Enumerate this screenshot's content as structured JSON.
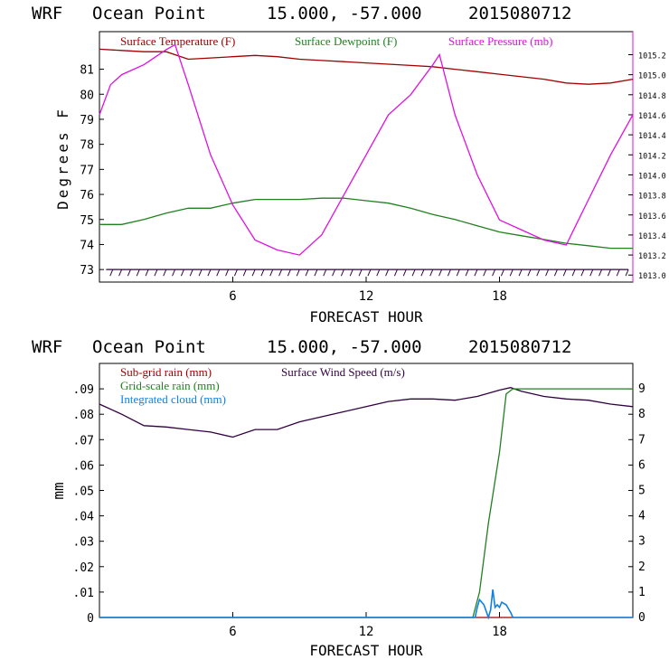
{
  "charts": {
    "top": {
      "title": {
        "model": "WRF",
        "location": "Ocean Point",
        "coords": "15.000, -57.000",
        "init": "2015080712"
      },
      "xlabel": "FORECAST HOUR",
      "ylabel_left": "Degrees F",
      "x_ticks": [
        "6",
        "12",
        "18"
      ],
      "y_ticks_left": [
        "73",
        "74",
        "75",
        "76",
        "77",
        "78",
        "79",
        "80",
        "81"
      ],
      "y_ticks_right": [
        "1013.0",
        "1013.2",
        "1013.4",
        "1013.6",
        "1013.8",
        "1014.0",
        "1014.2",
        "1014.4",
        "1014.6",
        "1014.8",
        "1015.0",
        "1015.2"
      ],
      "legend": [
        "Surface Temperature (F)",
        "Surface Dewpoint (F)",
        "Surface Pressure (mb)"
      ]
    },
    "bottom": {
      "title": {
        "model": "WRF",
        "location": "Ocean Point",
        "coords": "15.000, -57.000",
        "init": "2015080712"
      },
      "xlabel": "FORECAST HOUR",
      "ylabel_left": "mm",
      "x_ticks": [
        "6",
        "12",
        "18"
      ],
      "y_ticks_left": [
        "0",
        ".01",
        ".02",
        ".03",
        ".04",
        ".05",
        ".06",
        ".07",
        ".08",
        ".09"
      ],
      "y_ticks_right": [
        "0",
        "1",
        "2",
        "3",
        "4",
        "5",
        "6",
        "7",
        "8",
        "9"
      ],
      "legend": [
        "Sub-grid rain (mm)",
        "Surface Wind Speed (m/s)",
        "Grid-scale rain (mm)",
        "Integrated cloud (mm)"
      ]
    }
  },
  "colors": {
    "temp": "#a00000",
    "dew": "#208020",
    "press": "#e010e0",
    "wind": "#300040",
    "gridrain": "#208020",
    "cloud": "#1080e0",
    "subrain": "#a00000"
  },
  "chart_data": [
    {
      "type": "line",
      "title": "WRF Ocean Point 15.000, -57.000 2015080712",
      "xlabel": "FORECAST HOUR",
      "ylabel": "Degrees F",
      "xlim": [
        0,
        24
      ],
      "ylim": [
        72.5,
        82.5
      ],
      "y2lim": [
        1012.93,
        1015.43
      ],
      "x_ticks": [
        6,
        12,
        18
      ],
      "grid": false,
      "series": [
        {
          "name": "Surface Temperature (F)",
          "axis": "left",
          "x": [
            0,
            1,
            2,
            3,
            4,
            5,
            6,
            7,
            8,
            9,
            10,
            11,
            12,
            13,
            14,
            15,
            16,
            17,
            18,
            19,
            20,
            21,
            22,
            23,
            24
          ],
          "y": [
            81.8,
            81.75,
            81.7,
            81.7,
            81.4,
            81.45,
            81.5,
            81.55,
            81.5,
            81.4,
            81.35,
            81.3,
            81.25,
            81.2,
            81.15,
            81.1,
            81.0,
            80.9,
            80.8,
            80.7,
            80.6,
            80.45,
            80.4,
            80.45,
            80.6
          ]
        },
        {
          "name": "Surface Dewpoint (F)",
          "axis": "left",
          "x": [
            0,
            1,
            2,
            3,
            4,
            5,
            6,
            7,
            8,
            9,
            10,
            11,
            12,
            13,
            14,
            15,
            16,
            17,
            18,
            19,
            20,
            21,
            22,
            23,
            24
          ],
          "y": [
            74.8,
            74.8,
            75.0,
            75.25,
            75.45,
            75.45,
            75.65,
            75.8,
            75.8,
            75.8,
            75.85,
            75.85,
            75.75,
            75.65,
            75.45,
            75.2,
            75.0,
            74.75,
            74.5,
            74.35,
            74.2,
            74.05,
            73.95,
            73.85,
            73.85
          ]
        },
        {
          "name": "Surface Pressure (mb)",
          "axis": "right",
          "x": [
            0,
            0.5,
            1,
            2,
            3,
            3.4,
            4,
            5,
            6,
            7,
            8,
            9,
            10,
            11,
            12,
            13,
            14,
            15,
            15.3,
            16,
            17,
            18,
            19,
            20,
            21,
            22,
            23,
            24
          ],
          "y": [
            1014.6,
            1014.9,
            1015.0,
            1015.1,
            1015.25,
            1015.3,
            1014.9,
            1014.2,
            1013.7,
            1013.35,
            1013.25,
            1013.2,
            1013.4,
            1013.8,
            1014.2,
            1014.6,
            1014.8,
            1015.1,
            1015.2,
            1014.6,
            1014.0,
            1013.55,
            1013.45,
            1013.35,
            1013.3,
            1013.75,
            1014.2,
            1014.6
          ]
        }
      ]
    },
    {
      "type": "line",
      "title": "WRF Ocean Point 15.000, -57.000 2015080712",
      "xlabel": "FORECAST HOUR",
      "ylabel": "mm",
      "xlim": [
        0,
        24
      ],
      "ylim": [
        0,
        0.1
      ],
      "y2lim": [
        0,
        10
      ],
      "x_ticks": [
        6,
        12,
        18
      ],
      "grid": false,
      "series": [
        {
          "name": "Sub-grid rain (mm)",
          "axis": "left",
          "x": [
            0,
            24
          ],
          "y": [
            0,
            0
          ]
        },
        {
          "name": "Surface Wind Speed (m/s)",
          "axis": "right",
          "x": [
            0,
            1,
            2,
            3,
            4,
            5,
            6,
            7,
            8,
            9,
            10,
            11,
            12,
            13,
            14,
            15,
            16,
            17,
            18,
            18.5,
            19,
            20,
            21,
            22,
            23,
            24
          ],
          "y": [
            8.4,
            8.0,
            7.55,
            7.5,
            7.4,
            7.3,
            7.1,
            7.4,
            7.4,
            7.7,
            7.9,
            8.1,
            8.3,
            8.5,
            8.6,
            8.6,
            8.55,
            8.7,
            8.95,
            9.05,
            8.9,
            8.7,
            8.6,
            8.55,
            8.4,
            8.3
          ]
        },
        {
          "name": "Grid-scale rain (mm)",
          "axis": "left",
          "x": [
            0,
            16.8,
            17.1,
            17.5,
            18.0,
            18.3,
            18.6,
            24
          ],
          "y": [
            0,
            0,
            0.01,
            0.037,
            0.065,
            0.088,
            0.09,
            0.09
          ]
        },
        {
          "name": "Integrated cloud (mm)",
          "axis": "left",
          "x": [
            0,
            16.9,
            17.0,
            17.1,
            17.3,
            17.5,
            17.6,
            17.7,
            17.8,
            17.9,
            18.0,
            18.1,
            18.3,
            18.5,
            18.6,
            24
          ],
          "y": [
            0,
            0,
            0.004,
            0.007,
            0.005,
            0,
            0.003,
            0.011,
            0.004,
            0.005,
            0.004,
            0.006,
            0.005,
            0.002,
            0,
            0
          ]
        }
      ]
    }
  ]
}
